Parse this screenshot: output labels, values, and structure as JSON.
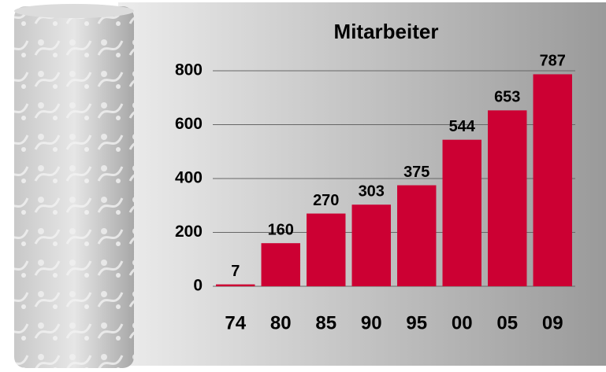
{
  "chart_data": {
    "type": "bar",
    "title": "Mitarbeiter",
    "categories": [
      "74",
      "80",
      "85",
      "90",
      "95",
      "00",
      "05",
      "09"
    ],
    "values": [
      7,
      160,
      270,
      303,
      375,
      544,
      653,
      787
    ],
    "color": "#cc0033",
    "ylim": [
      0,
      800
    ],
    "yticks": [
      0,
      200,
      400,
      600,
      800
    ],
    "grid": true
  }
}
